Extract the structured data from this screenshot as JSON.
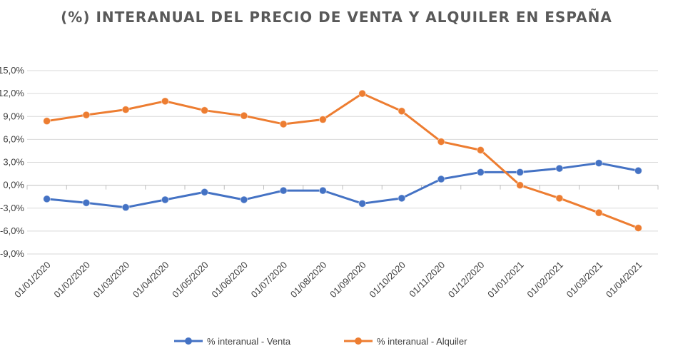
{
  "chart_data": {
    "type": "line",
    "title": "(%) INTERANUAL DEL PRECIO DE VENTA Y ALQUILER EN ESPAÑA",
    "categories": [
      "01/01/2020",
      "01/02/2020",
      "01/03/2020",
      "01/04/2020",
      "01/05/2020",
      "01/06/2020",
      "01/07/2020",
      "01/08/2020",
      "01/09/2020",
      "01/10/2020",
      "01/11/2020",
      "01/12/2020",
      "01/01/2021",
      "01/02/2021",
      "01/03/2021",
      "01/04/2021"
    ],
    "series": [
      {
        "name": "% interanual - Venta",
        "color": "#4472C4",
        "values": [
          -1.8,
          -2.3,
          -2.9,
          -1.9,
          -0.9,
          -1.9,
          -0.7,
          -0.7,
          -2.4,
          -1.7,
          0.8,
          1.7,
          1.7,
          2.2,
          2.9,
          1.9
        ]
      },
      {
        "name": "% interanual - Alquiler",
        "color": "#ED7D31",
        "values": [
          8.4,
          9.2,
          9.9,
          11.0,
          9.8,
          9.1,
          8.0,
          8.6,
          12.0,
          9.7,
          5.7,
          4.6,
          0.0,
          -1.7,
          -3.6,
          -5.6
        ]
      }
    ],
    "yticks": [
      "15,0%",
      "12,0%",
      "9,0%",
      "6,0%",
      "3,0%",
      "0,0%",
      "-3,0%",
      "-6,0%",
      "-9,0%"
    ],
    "ylim": [
      -9,
      15
    ],
    "ytick_step": 3,
    "grid": true,
    "legend_position": "bottom",
    "xlabel": "",
    "ylabel": ""
  }
}
